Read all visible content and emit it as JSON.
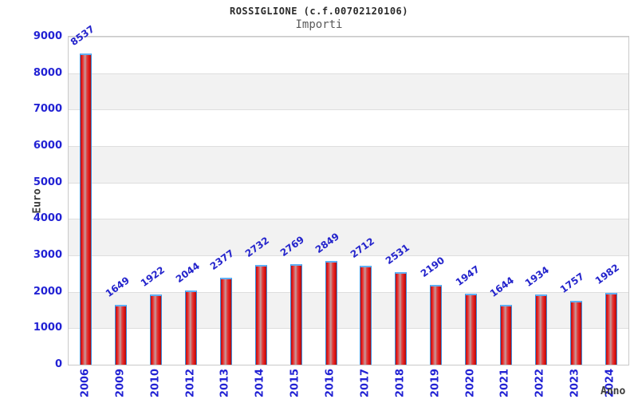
{
  "header": {
    "title": "ROSSIGLIONE (c.f.00702120106)",
    "subtitle": "Importi"
  },
  "chart_data": {
    "type": "bar",
    "title": "ROSSIGLIONE (c.f.00702120106)",
    "subtitle": "Importi",
    "xlabel": "Anno",
    "ylabel": "Euro",
    "categories": [
      "2006",
      "2009",
      "2010",
      "2012",
      "2013",
      "2014",
      "2015",
      "2016",
      "2017",
      "2018",
      "2019",
      "2020",
      "2021",
      "2022",
      "2023",
      "2024"
    ],
    "values": [
      8537,
      1649,
      1922,
      2044,
      2377,
      2732,
      2769,
      2849,
      2712,
      2531,
      2190,
      1947,
      1644,
      1934,
      1757,
      1982
    ],
    "ylim": [
      0,
      9000
    ],
    "ytick_step": 1000,
    "yticks": [
      0,
      1000,
      2000,
      3000,
      4000,
      5000,
      6000,
      7000,
      8000,
      9000
    ],
    "grid": "horizontal gridlines with alternating shaded bands",
    "legend": "none",
    "colors": {
      "bar_fill": "#e51a1a",
      "bar_border": "#3e8ede",
      "bar_top_highlight": "#61b0f4",
      "value_label": "#2424cc",
      "axis_tick_label": "#2222d4",
      "axis_title": "#3c3c3c",
      "band_shade": "#f2f2f2",
      "gridline": "#dedede",
      "plot_border": "#c9c9c9",
      "title_text": "#2a2a2a",
      "subtitle_text": "#5a5a5a"
    }
  }
}
